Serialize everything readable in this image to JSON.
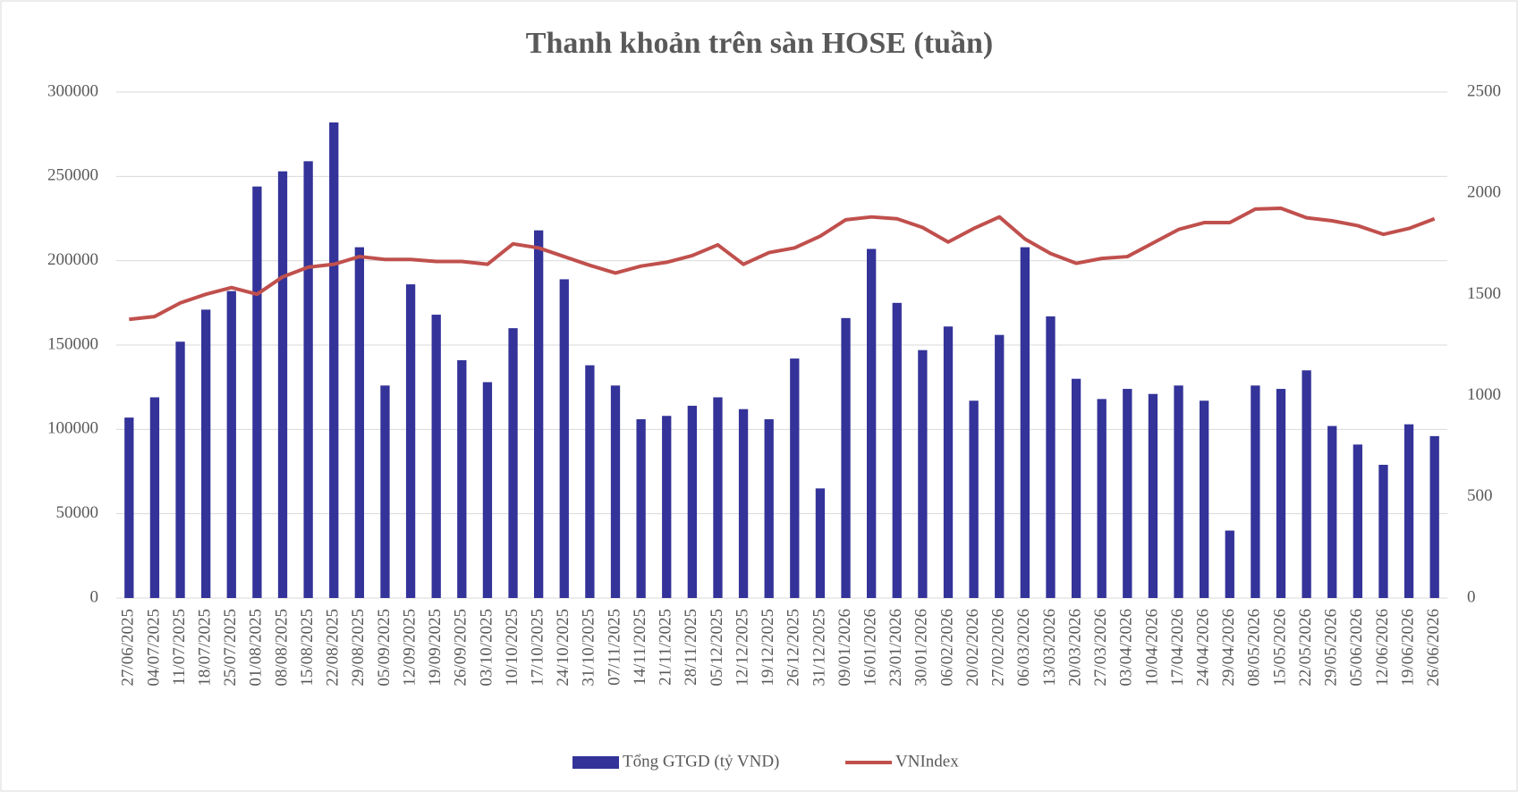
{
  "chart_data": {
    "type": "bar-line",
    "title": "Thanh khoản trên sàn HOSE (tuần)",
    "categories": [
      "27/06/2025",
      "04/07/2025",
      "11/07/2025",
      "18/07/2025",
      "25/07/2025",
      "01/08/2025",
      "08/08/2025",
      "15/08/2025",
      "22/08/2025",
      "29/08/2025",
      "05/09/2025",
      "12/09/2025",
      "19/09/2025",
      "26/09/2025",
      "03/10/2025",
      "10/10/2025",
      "17/10/2025",
      "24/10/2025",
      "31/10/2025",
      "07/11/2025",
      "14/11/2025",
      "21/11/2025",
      "28/11/2025",
      "05/12/2025",
      "12/12/2025",
      "19/12/2025",
      "26/12/2025",
      "31/12/2025",
      "09/01/2026",
      "16/01/2026",
      "23/01/2026",
      "30/01/2026",
      "06/02/2026",
      "20/02/2026",
      "27/02/2026",
      "06/03/2026",
      "13/03/2026",
      "20/03/2026",
      "27/03/2026",
      "03/04/2026",
      "10/04/2026",
      "17/04/2026",
      "24/04/2026",
      "29/04/2026",
      "08/05/2026",
      "15/05/2026",
      "22/05/2026",
      "29/05/2026",
      "05/06/2026",
      "12/06/2026",
      "19/06/2026",
      "26/06/2026"
    ],
    "series": [
      {
        "name": "Tổng GTGD (tỷ VND)",
        "type": "bar",
        "color": "#333399",
        "values": [
          107000,
          119000,
          152000,
          171000,
          182000,
          244000,
          253000,
          259000,
          282000,
          208000,
          126000,
          186000,
          168000,
          141000,
          128000,
          160000,
          218000,
          189000,
          138000,
          126000,
          106000,
          108000,
          114000,
          119000,
          112000,
          106000,
          142000,
          65000,
          166000,
          207000,
          175000,
          147000,
          161000,
          117000,
          156000,
          208000,
          167000,
          130000,
          118000,
          124000,
          121000,
          126000,
          117000,
          40000,
          126000,
          124000,
          135000,
          102000,
          91000,
          79000,
          103000,
          96000
        ]
      },
      {
        "name": "VNIndex",
        "type": "line",
        "axis": "y2",
        "color": "#c0504d",
        "values": [
          1377,
          1391,
          1458,
          1501,
          1534,
          1501,
          1587,
          1635,
          1649,
          1687,
          1673,
          1673,
          1663,
          1663,
          1649,
          1750,
          1730,
          1687,
          1644,
          1606,
          1640,
          1659,
          1692,
          1745,
          1649,
          1707,
          1730,
          1788,
          1869,
          1883,
          1874,
          1831,
          1759,
          1826,
          1883,
          1774,
          1702,
          1654,
          1678,
          1687,
          1754,
          1821,
          1855,
          1855,
          1922,
          1926,
          1879,
          1864,
          1840,
          1797,
          1826,
          1874
        ]
      }
    ],
    "ylim": [
      0,
      300000
    ],
    "yticks": [
      0,
      50000,
      100000,
      150000,
      200000,
      250000,
      300000
    ],
    "y2lim": [
      0,
      2500
    ],
    "y2ticks": [
      0,
      500,
      1000,
      1500,
      2000,
      2500
    ],
    "grid": true,
    "legend": "bottom"
  }
}
